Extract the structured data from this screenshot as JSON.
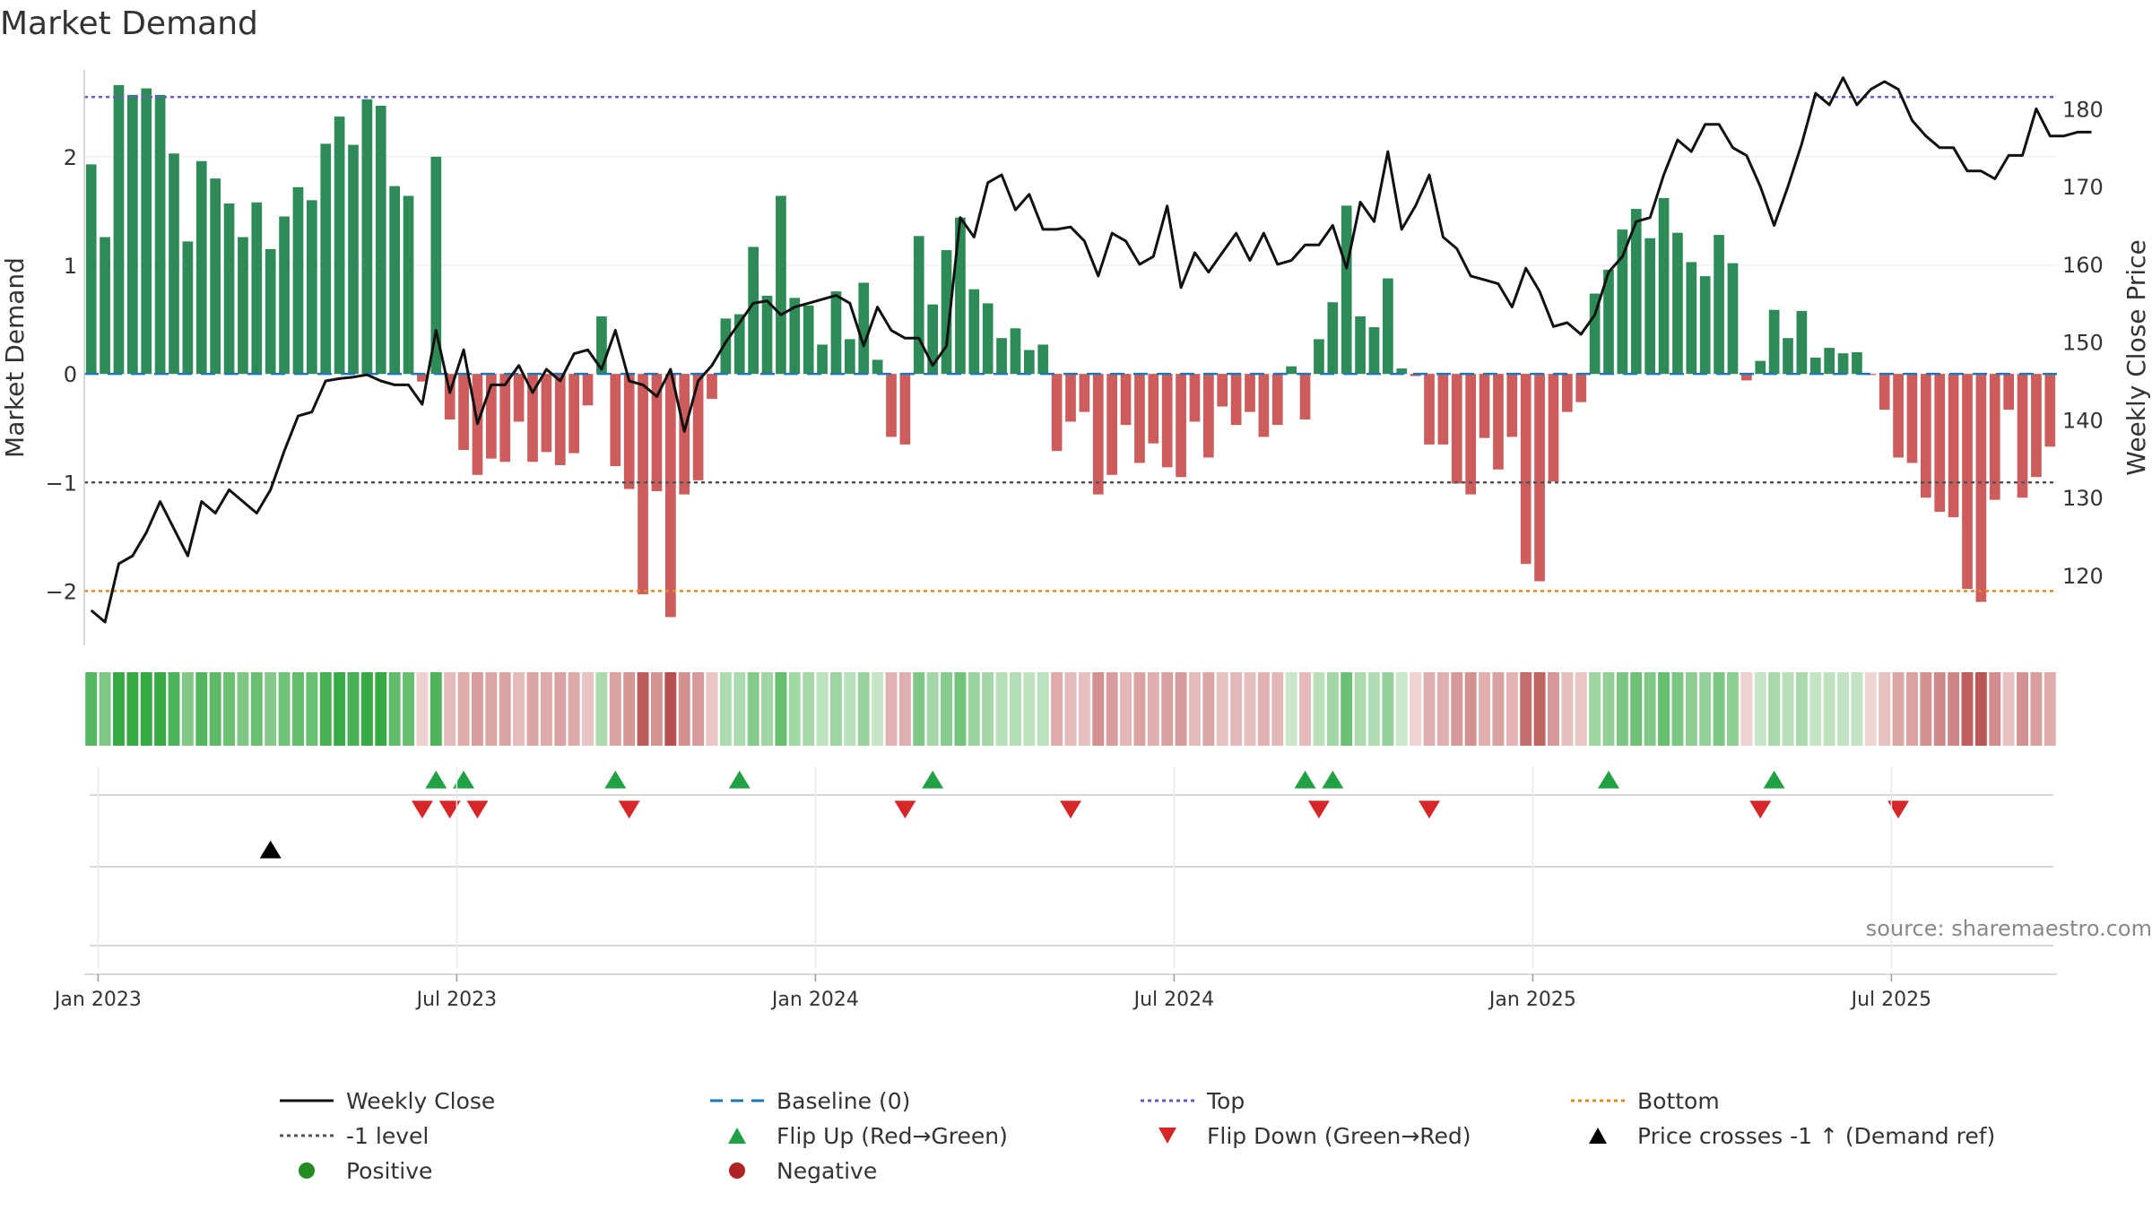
{
  "title": "Market Demand",
  "source": "source: sharemaestro.com",
  "colors": {
    "positive_bar": "#2e8b57",
    "negative_bar": "#cd5c5c",
    "price_line": "#111111",
    "baseline": "#1f77b4",
    "top": "#6a5acd",
    "bottom": "#e08a1e",
    "minus1": "#555555",
    "flip_up": "#22a046",
    "flip_down": "#d62728",
    "cross": "#000000"
  },
  "chart_data": {
    "type": "bar",
    "title": "Market Demand",
    "ylabel": "Market Demand",
    "y2label": "Weekly Close Price",
    "ylim": [
      -2.5,
      2.8
    ],
    "y2lim": [
      111,
      185
    ],
    "yticks": [
      2,
      1,
      0,
      -1,
      -2
    ],
    "ytick_labels": [
      "2",
      "1",
      "0",
      "−1",
      "−2"
    ],
    "y2ticks": [
      180,
      170,
      160,
      150,
      140,
      130,
      120
    ],
    "reference_lines": {
      "top": 2.55,
      "bottom": -2.0,
      "minus1": -1.0,
      "baseline": 0
    },
    "x_tick_labels": [
      "Jan 2023",
      "Jul 2023",
      "Jan 2024",
      "Jul 2024",
      "Jan 2025",
      "Jul 2025"
    ],
    "x_tick_weeks": [
      1,
      27,
      53,
      79,
      105,
      131
    ],
    "demand": [
      1.93,
      1.26,
      2.66,
      2.57,
      2.63,
      2.57,
      2.03,
      1.22,
      1.96,
      1.8,
      1.57,
      1.26,
      1.58,
      1.15,
      1.45,
      1.72,
      1.6,
      2.12,
      2.37,
      2.11,
      2.53,
      2.47,
      1.73,
      1.64,
      -0.07,
      2.0,
      -0.42,
      -0.7,
      -0.93,
      -0.78,
      -0.81,
      -0.44,
      -0.81,
      -0.72,
      -0.84,
      -0.73,
      -0.29,
      0.53,
      -0.85,
      -1.06,
      -2.03,
      -1.08,
      -2.24,
      -1.11,
      -0.98,
      -0.23,
      0.51,
      0.55,
      1.17,
      0.72,
      1.64,
      0.7,
      0.63,
      0.27,
      0.76,
      0.32,
      0.84,
      0.13,
      -0.58,
      -0.65,
      1.27,
      0.64,
      1.14,
      1.44,
      0.78,
      0.65,
      0.33,
      0.42,
      0.22,
      0.27,
      -0.71,
      -0.44,
      -0.35,
      -1.11,
      -0.93,
      -0.47,
      -0.82,
      -0.64,
      -0.86,
      -0.95,
      -0.44,
      -0.77,
      -0.3,
      -0.47,
      -0.35,
      -0.58,
      -0.47,
      0.07,
      -0.42,
      0.32,
      0.66,
      1.55,
      0.53,
      0.43,
      0.88,
      0.05,
      -0.02,
      -0.65,
      -0.65,
      -1.01,
      -1.11,
      -0.59,
      -0.88,
      -0.58,
      -1.75,
      -1.91,
      -0.99,
      -0.35,
      -0.26,
      0.74,
      0.96,
      1.33,
      1.52,
      1.25,
      1.62,
      1.3,
      1.03,
      0.9,
      1.28,
      1.02,
      -0.06,
      0.12,
      0.59,
      0.33,
      0.58,
      0.15,
      0.24,
      0.19,
      0.2,
      -0.01,
      -0.33,
      -0.77,
      -0.82,
      -1.14,
      -1.27,
      -1.32,
      -1.98,
      -2.1,
      -1.16,
      -0.33,
      -1.14,
      -0.95,
      -0.67
    ],
    "weekly_close": [
      115.5,
      114.0,
      121.5,
      122.5,
      125.5,
      129.5,
      126.0,
      122.5,
      129.5,
      128.0,
      131.0,
      129.5,
      128.0,
      131.0,
      136.0,
      140.5,
      141.0,
      145.0,
      145.3,
      145.5,
      145.8,
      145.0,
      144.5,
      144.5,
      142.0,
      151.5,
      143.5,
      149.0,
      139.5,
      144.5,
      144.5,
      147.0,
      143.5,
      146.5,
      145.0,
      148.5,
      149.0,
      146.5,
      151.5,
      145.0,
      144.5,
      143.0,
      146.5,
      138.5,
      145.0,
      147.0,
      150.0,
      152.5,
      155.0,
      155.3,
      153.5,
      154.5,
      155.0,
      155.5,
      156.0,
      155.0,
      149.5,
      154.5,
      151.5,
      150.5,
      150.5,
      147.0,
      149.5,
      166.0,
      163.5,
      170.5,
      171.5,
      167.0,
      169.0,
      164.5,
      164.5,
      164.8,
      163.0,
      158.5,
      164.0,
      163.0,
      160.0,
      161.0,
      167.5,
      157.0,
      161.5,
      159.0,
      161.5,
      164.0,
      160.5,
      164.0,
      160.0,
      160.5,
      162.5,
      162.5,
      165.0,
      159.5,
      168.0,
      165.5,
      174.5,
      164.5,
      167.5,
      171.5,
      163.5,
      162.0,
      158.5,
      158.0,
      157.5,
      154.5,
      159.5,
      156.5,
      152.0,
      152.5,
      151.0,
      153.5,
      159.0,
      161.0,
      165.5,
      166.0,
      171.5,
      176.0,
      174.5,
      178.0,
      178.0,
      175.0,
      174.0,
      170.0,
      165.0,
      170.0,
      175.5,
      182.0,
      180.5,
      184.0,
      180.5,
      182.5,
      183.5,
      182.5,
      178.5,
      176.5,
      175.0,
      175.0,
      172.0,
      172.0,
      171.0,
      174.0,
      174.0,
      180.0,
      176.5,
      176.5,
      177.0,
      177.0
    ],
    "flip_up_weeks": [
      25,
      27,
      38,
      47,
      61,
      88,
      90,
      110,
      122
    ],
    "flip_down_weeks": [
      24,
      26,
      28,
      39,
      59,
      71,
      89,
      97,
      121,
      131
    ],
    "price_cross_weeks": [
      13
    ]
  },
  "legend": [
    {
      "label": "Weekly Close",
      "symbol": "solid-line",
      "color": "#111111"
    },
    {
      "label": "Baseline (0)",
      "symbol": "dash-line",
      "color": "#1f77b4"
    },
    {
      "label": "Top",
      "symbol": "dot-line",
      "color": "#6a5acd"
    },
    {
      "label": "Bottom",
      "symbol": "dot-line",
      "color": "#e08a1e"
    },
    {
      "label": "-1 level",
      "symbol": "dot-line",
      "color": "#555555"
    },
    {
      "label": "Flip Up (Red→Green)",
      "symbol": "triangle-up",
      "color": "#22a046"
    },
    {
      "label": "Flip Down (Green→Red)",
      "symbol": "triangle-down",
      "color": "#d62728"
    },
    {
      "label": "Price crosses -1 ↑ (Demand ref)",
      "symbol": "triangle-up",
      "color": "#000000"
    },
    {
      "label": "Positive",
      "symbol": "circle",
      "color": "#228b22"
    },
    {
      "label": "Negative",
      "symbol": "circle",
      "color": "#b22222"
    }
  ]
}
